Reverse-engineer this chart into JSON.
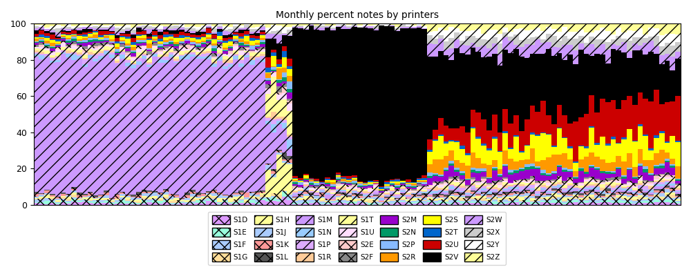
{
  "title": "Monthly percent notes by printers",
  "n_months": 120,
  "ylim": [
    0,
    100
  ],
  "series": [
    {
      "name": "S1D",
      "color": "#dd99ff",
      "hatch": "xx",
      "base": 2.0
    },
    {
      "name": "S1E",
      "color": "#99ffdd",
      "hatch": "xx",
      "base": 1.5
    },
    {
      "name": "S1F",
      "color": "#aaccff",
      "hatch": "xx",
      "base": 1.5
    },
    {
      "name": "S1G",
      "color": "#ffdd99",
      "hatch": "xx",
      "base": 1.5
    },
    {
      "name": "S1H",
      "color": "#ffff99",
      "hatch": "//",
      "base": 2.0
    },
    {
      "name": "S1J",
      "color": "#aaccff",
      "hatch": "//",
      "base": 2.0
    },
    {
      "name": "S1K",
      "color": "#ff9999",
      "hatch": "xx",
      "base": 2.0
    },
    {
      "name": "S1L",
      "color": "#555555",
      "hatch": "xx",
      "base": 2.0
    },
    {
      "name": "S1M",
      "color": "#cc99ff",
      "hatch": "//",
      "base": 55.0
    },
    {
      "name": "S1N",
      "color": "#99ccff",
      "hatch": "//",
      "base": 4.0
    },
    {
      "name": "S1P",
      "color": "#ddaaff",
      "hatch": "//",
      "base": 3.0
    },
    {
      "name": "S1R",
      "color": "#ffcc99",
      "hatch": "//",
      "base": 2.0
    },
    {
      "name": "S1T",
      "color": "#ffff99",
      "hatch": "//",
      "base": 4.0
    },
    {
      "name": "S1U",
      "color": "#ffddff",
      "hatch": "//",
      "base": 3.0
    },
    {
      "name": "S2E",
      "color": "#ffcccc",
      "hatch": "xx",
      "base": 2.0
    },
    {
      "name": "S2F",
      "color": "#888888",
      "hatch": "xx",
      "base": 2.0
    },
    {
      "name": "S2M",
      "color": "#9900cc",
      "hatch": "",
      "base": 2.0
    },
    {
      "name": "S2N",
      "color": "#009966",
      "hatch": "",
      "base": 1.5
    },
    {
      "name": "S2P",
      "color": "#88bbff",
      "hatch": "",
      "base": 2.0
    },
    {
      "name": "S2R",
      "color": "#ff9900",
      "hatch": "",
      "base": 3.0
    },
    {
      "name": "S2S",
      "color": "#ffff00",
      "hatch": "",
      "base": 4.0
    },
    {
      "name": "S2T",
      "color": "#0066cc",
      "hatch": "",
      "base": 2.0
    },
    {
      "name": "S2U",
      "color": "#cc0000",
      "hatch": "",
      "base": 4.0
    },
    {
      "name": "S2V",
      "color": "#000000",
      "hatch": "",
      "base": 3.0
    },
    {
      "name": "S2W",
      "color": "#cc99ff",
      "hatch": "//",
      "base": 3.0
    },
    {
      "name": "S2X",
      "color": "#cccccc",
      "hatch": "//",
      "base": 2.5
    },
    {
      "name": "S2Y",
      "color": "#ffffff",
      "hatch": "//",
      "base": 2.5
    },
    {
      "name": "S2Z",
      "color": "#ffff99",
      "hatch": "//",
      "base": 2.5
    }
  ],
  "figsize": [
    10,
    4
  ],
  "dpi": 100,
  "legend_ncol": 7
}
